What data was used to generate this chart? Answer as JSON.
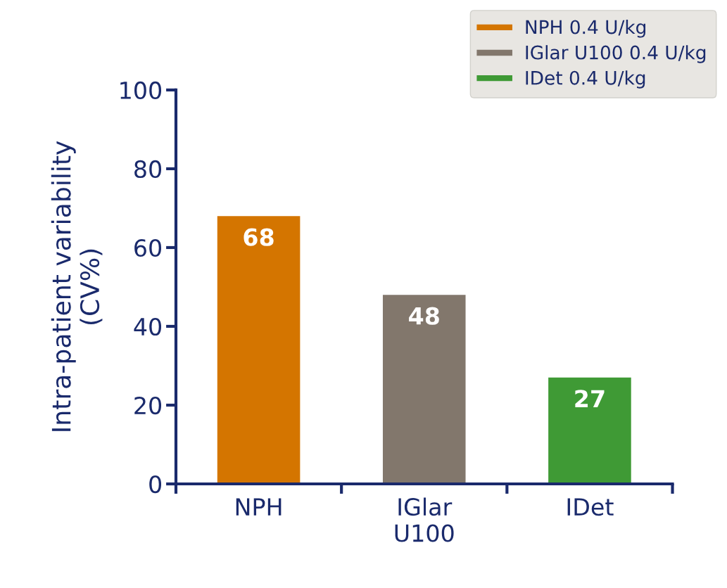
{
  "chart_data": {
    "type": "bar",
    "ylabel": "Intra-patient variability\n(CV%)",
    "categories": [
      "NPH",
      "IGlar\nU100",
      "IDet"
    ],
    "series": [
      {
        "name": "NPH 0.4 U/kg",
        "color": "#d47500",
        "values": [
          68,
          null,
          null
        ]
      },
      {
        "name": "IGlar U100 0.4 U/kg",
        "color": "#82776c",
        "values": [
          null,
          48,
          null
        ]
      },
      {
        "name": "IDet 0.4 U/kg",
        "color": "#3f9a35",
        "values": [
          null,
          null,
          27
        ]
      }
    ],
    "ylim": [
      0,
      100
    ],
    "yticks": [
      0,
      20,
      40,
      60,
      80,
      100
    ],
    "data_labels": true,
    "grid": false,
    "legend": "top right"
  }
}
